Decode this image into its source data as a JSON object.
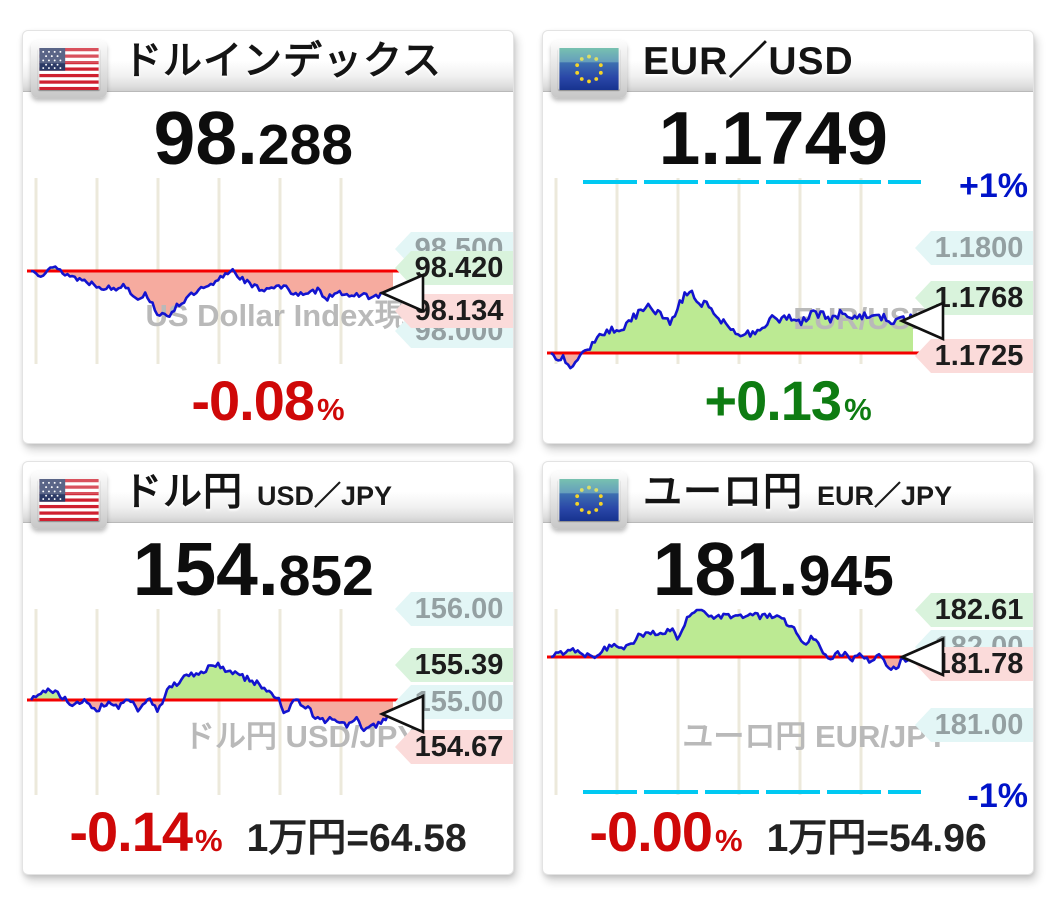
{
  "panels": [
    {
      "title": "ドルインデックス",
      "subtitle": "",
      "price_main": "98.",
      "price_dec": "288",
      "watermark": "US Dollar Index現物",
      "labels": [
        {
          "text": "98.500",
          "kind": "grid"
        },
        {
          "text": "98.420",
          "kind": "high"
        },
        {
          "text": "98.134",
          "kind": "low"
        },
        {
          "text": "98.000",
          "kind": "grid"
        }
      ],
      "change": "-0.08",
      "change_unit": "%",
      "change_dir": "down",
      "extra": ""
    },
    {
      "title": "EUR／USD",
      "subtitle": "",
      "price_main": "1.1749",
      "price_dec": "",
      "watermark": "EUR/USD",
      "pct_label": "+1%",
      "labels": [
        {
          "text": "1.1800",
          "kind": "grid"
        },
        {
          "text": "1.1768",
          "kind": "high"
        },
        {
          "text": "1.1725",
          "kind": "low"
        }
      ],
      "change": "+0.13",
      "change_unit": "%",
      "change_dir": "up",
      "extra": ""
    },
    {
      "title": "ドル円",
      "subtitle": "USD／JPY",
      "price_main": "154.",
      "price_dec": "852",
      "watermark": "ドル円 USD/JPY",
      "labels": [
        {
          "text": "156.00",
          "kind": "grid"
        },
        {
          "text": "155.39",
          "kind": "high"
        },
        {
          "text": "155.00",
          "kind": "grid"
        },
        {
          "text": "154.67",
          "kind": "low"
        }
      ],
      "change": "-0.14",
      "change_unit": "%",
      "change_dir": "down",
      "extra": "1万円=64.58"
    },
    {
      "title": "ユーロ円",
      "subtitle": "EUR／JPY",
      "price_main": "181.",
      "price_dec": "945",
      "watermark": "ユーロ円 EUR/JPY",
      "pct_label": "-1%",
      "labels": [
        {
          "text": "182.61",
          "kind": "high"
        },
        {
          "text": "182.00",
          "kind": "grid"
        },
        {
          "text": "181.78",
          "kind": "low"
        },
        {
          "text": "181.00",
          "kind": "grid"
        }
      ],
      "change": "-0.00",
      "change_unit": "%",
      "change_dir": "down",
      "extra": "1万円=54.96"
    }
  ],
  "chart_data": [
    {
      "type": "line",
      "title": "ドルインデックス",
      "x": "intraday time",
      "open": 98.42,
      "high": 98.42,
      "low": 98.134,
      "last": 98.288,
      "change_pct": -0.08,
      "baseline_value": 98.42,
      "y_grid_labels": [
        98.5,
        98.0
      ],
      "keypoints": [
        [
          0,
          98.42
        ],
        [
          0.03,
          98.4
        ],
        [
          0.05,
          98.45
        ],
        [
          0.08,
          98.42
        ],
        [
          0.11,
          98.39
        ],
        [
          0.15,
          98.36
        ],
        [
          0.19,
          98.33
        ],
        [
          0.23,
          98.31
        ],
        [
          0.26,
          98.34
        ],
        [
          0.29,
          98.26
        ],
        [
          0.32,
          98.28
        ],
        [
          0.35,
          98.17
        ],
        [
          0.375,
          98.14
        ],
        [
          0.4,
          98.21
        ],
        [
          0.44,
          98.27
        ],
        [
          0.47,
          98.31
        ],
        [
          0.5,
          98.33
        ],
        [
          0.53,
          98.39
        ],
        [
          0.555,
          98.43
        ],
        [
          0.58,
          98.38
        ],
        [
          0.61,
          98.33
        ],
        [
          0.64,
          98.31
        ],
        [
          0.67,
          98.33
        ],
        [
          0.7,
          98.32
        ],
        [
          0.73,
          98.29
        ],
        [
          0.76,
          98.27
        ],
        [
          0.79,
          98.31
        ],
        [
          0.82,
          98.26
        ],
        [
          0.85,
          98.31
        ],
        [
          0.88,
          98.25
        ],
        [
          0.91,
          98.29
        ],
        [
          0.94,
          98.26
        ],
        [
          0.97,
          98.28
        ],
        [
          1,
          98.288
        ]
      ],
      "noise": 0.018,
      "seed": 13
    },
    {
      "type": "line",
      "title": "EUR/USD",
      "x": "intraday time",
      "open": 1.1725,
      "high": 1.1768,
      "low": 1.1725,
      "last": 1.1749,
      "change_pct": 0.13,
      "baseline_value": 1.1725,
      "pct_marker": "+1%",
      "y_grid_labels": [
        1.18
      ],
      "keypoints": [
        [
          0,
          1.1725
        ],
        [
          0.03,
          1.1722
        ],
        [
          0.06,
          1.1716
        ],
        [
          0.09,
          1.1727
        ],
        [
          0.12,
          1.1733
        ],
        [
          0.16,
          1.174
        ],
        [
          0.2,
          1.1743
        ],
        [
          0.24,
          1.1752
        ],
        [
          0.27,
          1.1758
        ],
        [
          0.3,
          1.1752
        ],
        [
          0.33,
          1.1746
        ],
        [
          0.36,
          1.1762
        ],
        [
          0.385,
          1.1768
        ],
        [
          0.41,
          1.176
        ],
        [
          0.44,
          1.1757
        ],
        [
          0.47,
          1.1748
        ],
        [
          0.5,
          1.1741
        ],
        [
          0.53,
          1.1737
        ],
        [
          0.57,
          1.1741
        ],
        [
          0.61,
          1.1748
        ],
        [
          0.65,
          1.175
        ],
        [
          0.69,
          1.1747
        ],
        [
          0.73,
          1.1752
        ],
        [
          0.77,
          1.1749
        ],
        [
          0.81,
          1.1753
        ],
        [
          0.85,
          1.1749
        ],
        [
          0.89,
          1.1752
        ],
        [
          0.93,
          1.1749
        ],
        [
          0.96,
          1.1746
        ],
        [
          1,
          1.1749
        ]
      ],
      "noise": 0.00032,
      "seed": 27
    },
    {
      "type": "line",
      "title": "USD/JPY",
      "x": "intraday time",
      "open": 155.0,
      "high": 155.39,
      "low": 154.67,
      "last": 154.852,
      "change_pct": -0.14,
      "jpy_per_10000": 64.58,
      "baseline_value": 155.0,
      "y_grid_labels": [
        156.0,
        155.0
      ],
      "keypoints": [
        [
          0,
          155.0
        ],
        [
          0.03,
          155.07
        ],
        [
          0.06,
          155.11
        ],
        [
          0.09,
          155.01
        ],
        [
          0.12,
          154.94
        ],
        [
          0.15,
          155.01
        ],
        [
          0.18,
          154.89
        ],
        [
          0.21,
          154.98
        ],
        [
          0.24,
          154.92
        ],
        [
          0.27,
          155.03
        ],
        [
          0.3,
          154.87
        ],
        [
          0.325,
          155.06
        ],
        [
          0.35,
          154.89
        ],
        [
          0.38,
          155.12
        ],
        [
          0.42,
          155.23
        ],
        [
          0.45,
          155.27
        ],
        [
          0.48,
          155.31
        ],
        [
          0.505,
          155.39
        ],
        [
          0.53,
          155.34
        ],
        [
          0.56,
          155.29
        ],
        [
          0.59,
          155.24
        ],
        [
          0.62,
          155.19
        ],
        [
          0.65,
          155.11
        ],
        [
          0.68,
          155.03
        ],
        [
          0.705,
          154.84
        ],
        [
          0.73,
          155.01
        ],
        [
          0.755,
          154.94
        ],
        [
          0.78,
          154.84
        ],
        [
          0.81,
          154.77
        ],
        [
          0.84,
          154.81
        ],
        [
          0.87,
          154.71
        ],
        [
          0.9,
          154.79
        ],
        [
          0.925,
          154.67
        ],
        [
          0.95,
          154.72
        ],
        [
          0.975,
          154.79
        ],
        [
          1,
          154.852
        ]
      ],
      "noise": 0.035,
      "seed": 41
    },
    {
      "type": "line",
      "title": "EUR/JPY",
      "x": "intraday time",
      "open": 181.95,
      "high": 182.61,
      "low": 181.78,
      "last": 181.945,
      "change_pct": -0.0,
      "jpy_per_10000": 54.96,
      "baseline_value": 181.95,
      "pct_marker": "-1%",
      "y_grid_labels": [
        182.0,
        181.0
      ],
      "keypoints": [
        [
          0,
          181.95
        ],
        [
          0.03,
          182.01
        ],
        [
          0.06,
          182.06
        ],
        [
          0.09,
          181.99
        ],
        [
          0.12,
          181.97
        ],
        [
          0.15,
          182.06
        ],
        [
          0.18,
          182.11
        ],
        [
          0.21,
          182.08
        ],
        [
          0.24,
          182.21
        ],
        [
          0.27,
          182.26
        ],
        [
          0.3,
          182.22
        ],
        [
          0.33,
          182.31
        ],
        [
          0.35,
          182.19
        ],
        [
          0.38,
          182.46
        ],
        [
          0.405,
          182.61
        ],
        [
          0.43,
          182.51
        ],
        [
          0.46,
          182.46
        ],
        [
          0.49,
          182.49
        ],
        [
          0.52,
          182.46
        ],
        [
          0.55,
          182.51
        ],
        [
          0.58,
          182.46
        ],
        [
          0.61,
          182.49
        ],
        [
          0.64,
          182.43
        ],
        [
          0.67,
          182.32
        ],
        [
          0.695,
          182.1
        ],
        [
          0.72,
          182.22
        ],
        [
          0.745,
          182.06
        ],
        [
          0.77,
          181.95
        ],
        [
          0.8,
          182.01
        ],
        [
          0.83,
          181.92
        ],
        [
          0.86,
          181.97
        ],
        [
          0.885,
          181.89
        ],
        [
          0.91,
          181.96
        ],
        [
          0.93,
          181.83
        ],
        [
          0.95,
          181.78
        ],
        [
          0.97,
          181.91
        ],
        [
          1,
          181.945
        ]
      ],
      "noise": 0.04,
      "seed": 55
    }
  ],
  "colors": {
    "line_blue": "#1313cf",
    "baseline_red": "#f40000",
    "fill_up_green": "#bcea93",
    "fill_down_pink": "#f6ab9f",
    "pct_line_cyan": "#00c9f2",
    "pct_text_blue": "#0013c9",
    "tag_high_bg": "#d9f3dc",
    "tag_low_bg": "#fbdbda",
    "tag_grid_bg": "#e3f6f6",
    "change_down_red": "#cf0808",
    "change_up_green": "#0e7c12",
    "watermark_gray": "#b9b9b9",
    "gridline_beige": "#ece9db"
  }
}
